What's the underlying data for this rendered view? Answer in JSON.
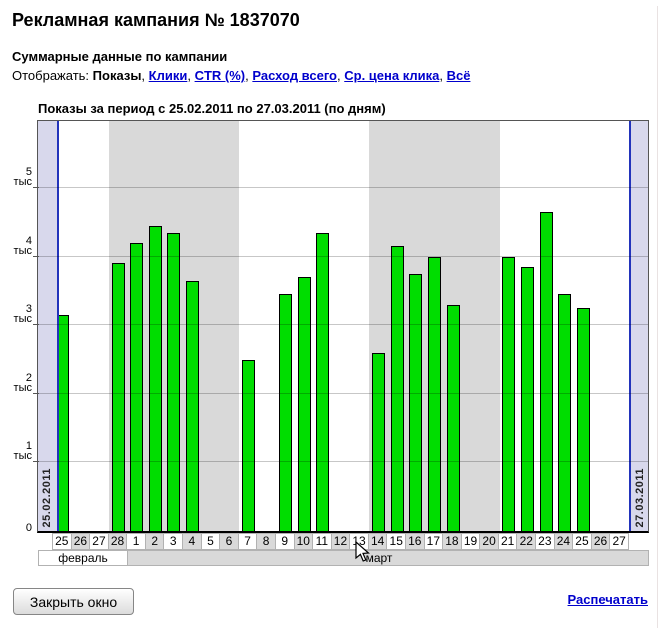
{
  "page": {
    "title": "Рекламная кампания № 1837070",
    "subtitle": "Суммарные данные по кампании",
    "display_row": {
      "label": "Отображать:",
      "current": "Показы",
      "links": [
        "Клики",
        "CTR (%)",
        "Расход всего",
        "Ср. цена клика",
        "Всё"
      ]
    },
    "close_button_label": "Закрыть окно",
    "print_link_label": "Распечатать"
  },
  "chart_data": {
    "type": "bar",
    "title": "Показы за период с 25.02.2011 по 27.03.2011 (по дням)",
    "metric": "Показы",
    "unit": "тыс",
    "ylim": [
      0,
      6
    ],
    "y_ticks": [
      1,
      2,
      3,
      4,
      5
    ],
    "grid": true,
    "bar_color": "#00dd00",
    "bar_border_color": "#000000",
    "shaded_week_color": "#d9d9d9",
    "period_band_color": "#d8d8ec",
    "period_line_color": "#2233bb",
    "period_start_label": "25.02.2011",
    "period_end_label": "27.03.2011",
    "months": [
      {
        "label": "февраль",
        "day_count": 4
      },
      {
        "label": "март",
        "day_count": 27
      }
    ],
    "days": [
      "25",
      "26",
      "27",
      "28",
      "1",
      "2",
      "3",
      "4",
      "5",
      "6",
      "7",
      "8",
      "9",
      "10",
      "11",
      "12",
      "13",
      "14",
      "15",
      "16",
      "17",
      "18",
      "19",
      "20",
      "21",
      "22",
      "23",
      "24",
      "25",
      "26",
      "27"
    ],
    "values_thousands": [
      3.15,
      0,
      0,
      3.9,
      4.2,
      4.45,
      4.35,
      3.65,
      0,
      0,
      2.5,
      0,
      3.45,
      3.7,
      4.35,
      0,
      0,
      2.6,
      4.15,
      3.75,
      4.0,
      3.3,
      0,
      0,
      4.0,
      3.85,
      4.65,
      3.45,
      3.25,
      0,
      0
    ],
    "shaded_week_day_index_ranges": [
      [
        3,
        9
      ],
      [
        17,
        23
      ]
    ]
  }
}
